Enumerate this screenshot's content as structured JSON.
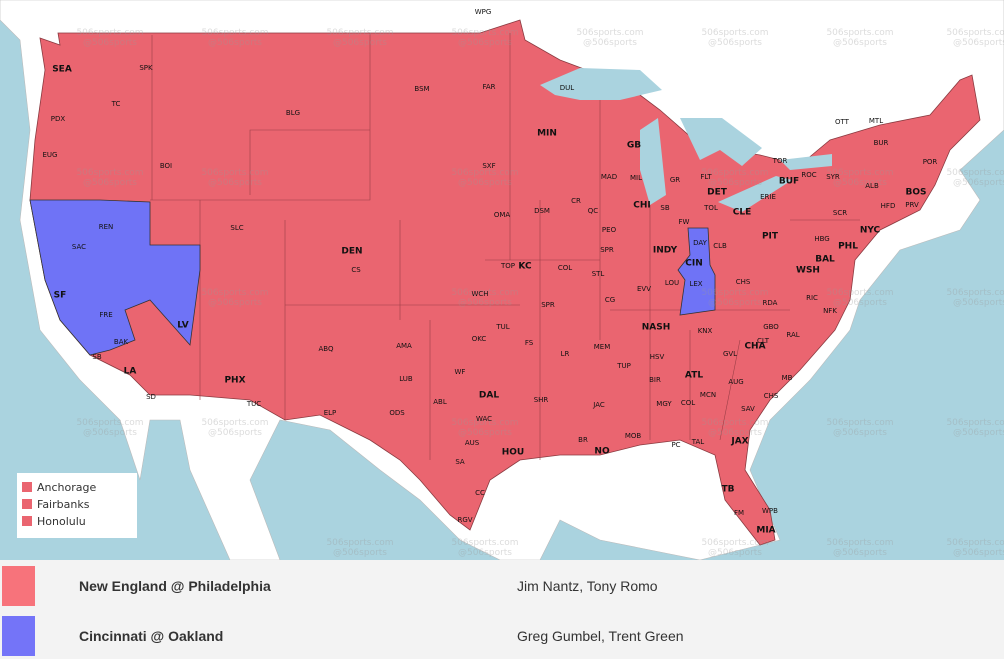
{
  "map": {
    "colors": {
      "ocean": "#aad3df",
      "land": "#ffffff",
      "red": "#ea6570",
      "blue": "#6f73f6"
    },
    "watermark": [
      "506sports.com",
      "@506sports"
    ],
    "cities": [
      "WPG",
      "SEA",
      "SPK",
      "TC",
      "PDX",
      "EUG",
      "BOI",
      "BLG",
      "BSM",
      "FAR",
      "DUL",
      "MIN",
      "GB",
      "OTT",
      "MTL",
      "BUR",
      "POR",
      "ALB",
      "BOS",
      "HFD",
      "PRV",
      "NYC",
      "SXF",
      "MAD",
      "MIL",
      "GR",
      "FLT",
      "DET",
      "TOR",
      "BUF",
      "ROC",
      "SYR",
      "CHI",
      "SB",
      "TOL",
      "CLE",
      "ERIE",
      "SCR",
      "PIT",
      "HBG",
      "PHL",
      "BAL",
      "WSH",
      "RIC",
      "NFK",
      "SLC",
      "DEN",
      "CS",
      "OMA",
      "DSM",
      "CR",
      "QC",
      "PEO",
      "SPR",
      "INDY",
      "FW",
      "DAY",
      "CLB",
      "CIN",
      "CHS",
      "TOP",
      "KC",
      "COL",
      "STL",
      "EVV",
      "LOU",
      "LEX",
      "WCH",
      "SPR",
      "CG",
      "REN",
      "SAC",
      "SF",
      "FRE",
      "BAK",
      "SB",
      "LA",
      "SD",
      "LV",
      "PHX",
      "TUC",
      "ABQ",
      "AMA",
      "LUB",
      "ELP",
      "ODS",
      "ABL",
      "DAL",
      "WF",
      "OKC",
      "TUL",
      "FS",
      "LR",
      "MEM",
      "NASH",
      "KNX",
      "RDA",
      "GBO",
      "RAL",
      "CLT",
      "GVL",
      "CHA",
      "HSV",
      "TUP",
      "BIR",
      "ATL",
      "AUG",
      "MB",
      "CHS",
      "COL",
      "MCN",
      "MGY",
      "SAV",
      "JAC",
      "SHR",
      "WAC",
      "AUS",
      "SA",
      "HOU",
      "BR",
      "NO",
      "MOB",
      "PC",
      "TAL",
      "JAX",
      "TB",
      "FM",
      "WPB",
      "MIA",
      "CC",
      "RGV"
    ],
    "legend": [
      "Anchorage",
      "Fairbanks",
      "Honolulu"
    ]
  },
  "games": [
    {
      "matchup": "New England @ Philadelphia",
      "announcers": "Jim Nantz, Tony Romo",
      "color": "#f7737b"
    },
    {
      "matchup": "Cincinnati @ Oakland",
      "announcers": "Greg Gumbel, Trent Green",
      "color": "#7474f8"
    }
  ]
}
